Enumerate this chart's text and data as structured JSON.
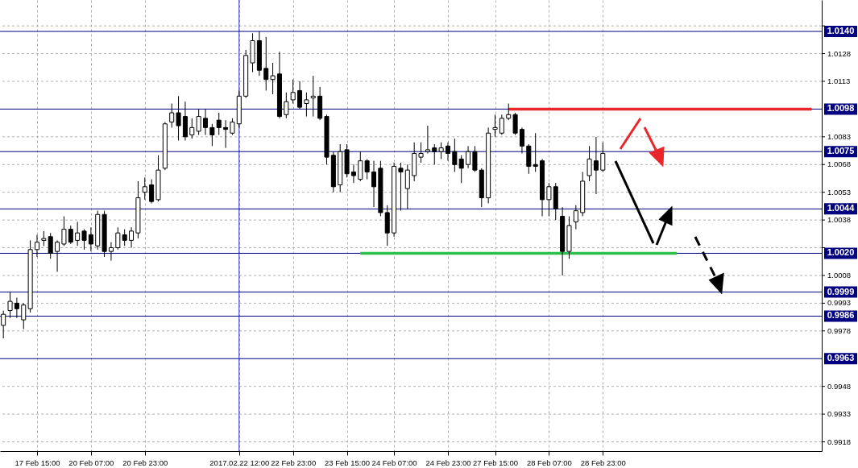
{
  "chart_data": {
    "type": "candlestick",
    "categories": [
      null,
      null,
      null,
      null,
      null,
      "17 Feb 15:00",
      null,
      null,
      null,
      null,
      null,
      null,
      null,
      "20 Feb 07:00",
      null,
      null,
      null,
      null,
      null,
      null,
      null,
      "20 Feb 23:00",
      null,
      null,
      null,
      null,
      null,
      null,
      null,
      null,
      null,
      null,
      null,
      null,
      null,
      "2017.02.22 12:00",
      null,
      null,
      null,
      null,
      null,
      null,
      null,
      "22 Feb 23:00",
      null,
      null,
      null,
      null,
      null,
      null,
      null,
      "23 Feb 15:00",
      null,
      null,
      null,
      null,
      null,
      null,
      "24 Feb 07:00",
      null,
      null,
      null,
      null,
      null,
      null,
      null,
      "24 Feb 23:00",
      null,
      null,
      null,
      null,
      null,
      null,
      "27 Feb 15:00",
      null,
      null,
      null,
      null,
      null,
      null,
      null,
      "28 Feb 07:00",
      null,
      null,
      null,
      null,
      null,
      null,
      null,
      "28 Feb 23:00",
      null,
      null,
      null,
      null,
      null,
      null,
      null,
      null,
      null,
      null,
      null,
      null,
      null,
      null,
      null,
      null,
      null,
      null,
      null,
      null,
      null,
      null,
      null,
      null,
      null,
      null,
      null,
      null,
      null,
      null,
      null,
      null
    ],
    "ohlc": [
      [
        0.9981,
        0.9989,
        0.9974,
        0.9987
      ],
      [
        0.9989,
        0.9999,
        0.9985,
        0.9994
      ],
      [
        0.9993,
        0.9996,
        0.9985,
        0.999
      ],
      [
        0.9984,
        0.9993,
        0.9979,
        0.9992
      ],
      [
        0.999,
        1.0027,
        0.9988,
        1.0022
      ],
      [
        1.0022,
        1.003,
        1.0018,
        1.0026
      ],
      [
        1.0027,
        1.0032,
        1.0024,
        1.0028
      ],
      [
        1.0029,
        1.0031,
        1.0017,
        1.002
      ],
      [
        1.0021,
        1.0027,
        1.001,
        1.0026
      ],
      [
        1.0025,
        1.004,
        1.0024,
        1.0033
      ],
      [
        1.0033,
        1.0035,
        1.0025,
        1.0026
      ],
      [
        1.0027,
        1.0037,
        1.0024,
        1.0031
      ],
      [
        1.0032,
        1.0033,
        1.0022,
        1.0027
      ],
      [
        1.003,
        1.0034,
        1.0021,
        1.0025
      ],
      [
        1.0024,
        1.0043,
        1.0022,
        1.0041
      ],
      [
        1.0041,
        1.0043,
        1.0018,
        1.0021
      ],
      [
        1.0021,
        1.0026,
        1.0016,
        1.0023
      ],
      [
        1.0023,
        1.0034,
        1.0022,
        1.0031
      ],
      [
        1.003,
        1.0033,
        1.0024,
        1.0027
      ],
      [
        1.0027,
        1.0034,
        1.0023,
        1.0032
      ],
      [
        1.0031,
        1.0059,
        1.0028,
        1.005
      ],
      [
        1.0053,
        1.0061,
        1.0049,
        1.0056
      ],
      [
        1.0057,
        1.006,
        1.0047,
        1.0048
      ],
      [
        1.0049,
        1.0073,
        1.0048,
        1.0065
      ],
      [
        1.0066,
        1.0091,
        1.0065,
        1.009
      ],
      [
        1.0091,
        1.0101,
        1.0088,
        1.0096
      ],
      [
        1.0096,
        1.0105,
        1.0081,
        1.0089
      ],
      [
        1.0094,
        1.0102,
        1.0081,
        1.0083
      ],
      [
        1.0084,
        1.0093,
        1.0082,
        1.0088
      ],
      [
        1.0086,
        1.0098,
        1.0084,
        1.0094
      ],
      [
        1.0093,
        1.0098,
        1.0084,
        1.0088
      ],
      [
        1.0088,
        1.009,
        1.0078,
        1.0084
      ],
      [
        1.0092,
        1.0096,
        1.0084,
        1.0088
      ],
      [
        1.0088,
        1.0092,
        1.0077,
        1.0087
      ],
      [
        1.0085,
        1.0093,
        1.0084,
        1.0091
      ],
      [
        1.009,
        1.0108,
        1.0088,
        1.0105
      ],
      [
        1.0105,
        1.013,
        1.0104,
        1.0127
      ],
      [
        1.0123,
        1.0139,
        1.0118,
        1.0135
      ],
      [
        1.0135,
        1.014,
        1.0116,
        1.0119
      ],
      [
        1.012,
        1.0137,
        1.0108,
        1.0114
      ],
      [
        1.0114,
        1.0123,
        1.0106,
        1.0116
      ],
      [
        1.0117,
        1.0129,
        1.0093,
        1.0094
      ],
      [
        1.0095,
        1.0107,
        1.0093,
        1.0102
      ],
      [
        1.0103,
        1.0114,
        1.0101,
        1.0107
      ],
      [
        1.0108,
        1.0113,
        1.0098,
        1.0099
      ],
      [
        1.0101,
        1.0107,
        1.0094,
        1.0103
      ],
      [
        1.0104,
        1.0116,
        1.0094,
        1.0105
      ],
      [
        1.0105,
        1.011,
        1.0092,
        1.0093
      ],
      [
        1.0094,
        1.0095,
        1.0068,
        1.0072
      ],
      [
        1.0073,
        1.0075,
        1.0053,
        1.0056
      ],
      [
        1.0057,
        1.0079,
        1.0053,
        1.0075
      ],
      [
        1.0076,
        1.0079,
        1.0061,
        1.0063
      ],
      [
        1.0064,
        1.0068,
        1.0058,
        1.0062
      ],
      [
        1.006,
        1.0075,
        1.0059,
        1.007
      ],
      [
        1.007,
        1.0071,
        1.006,
        1.0064
      ],
      [
        1.0064,
        1.007,
        1.0045,
        1.0056
      ],
      [
        1.0066,
        1.007,
        1.004,
        1.0042
      ],
      [
        1.0042,
        1.0046,
        1.0024,
        1.0031
      ],
      [
        1.0031,
        1.0069,
        1.0029,
        1.0067
      ],
      [
        1.0066,
        1.0069,
        1.0043,
        1.0064
      ],
      [
        1.0055,
        1.0068,
        1.0044,
        1.0065
      ],
      [
        1.0062,
        1.008,
        1.0059,
        1.0074
      ],
      [
        1.0072,
        1.008,
        1.0069,
        1.0074
      ],
      [
        1.0075,
        1.0089,
        1.0074,
        1.0076
      ],
      [
        1.0077,
        1.0079,
        1.0068,
        1.0075
      ],
      [
        1.0075,
        1.008,
        1.0071,
        1.0077
      ],
      [
        1.0078,
        1.008,
        1.007,
        1.0074
      ],
      [
        1.0075,
        1.0082,
        1.0064,
        1.0068
      ],
      [
        1.0071,
        1.0073,
        1.0058,
        1.0066
      ],
      [
        1.0068,
        1.0078,
        1.0066,
        1.0075
      ],
      [
        1.0075,
        1.0078,
        1.0064,
        1.0065
      ],
      [
        1.0065,
        1.0066,
        1.0045,
        1.005
      ],
      [
        1.005,
        1.0088,
        1.0047,
        1.0085
      ],
      [
        1.0087,
        1.0095,
        1.0083,
        1.0088
      ],
      [
        1.0085,
        1.0095,
        1.0084,
        1.0093
      ],
      [
        1.0093,
        1.0101,
        1.0092,
        1.0095
      ],
      [
        1.0095,
        1.0096,
        1.0084,
        1.0085
      ],
      [
        1.0087,
        1.0088,
        1.0074,
        1.0078
      ],
      [
        1.0078,
        1.0079,
        1.0063,
        1.0067
      ],
      [
        1.0068,
        1.0085,
        1.0064,
        1.0067
      ],
      [
        1.007,
        1.0071,
        1.004,
        1.0049
      ],
      [
        1.0049,
        1.0058,
        1.004,
        1.0056
      ],
      [
        1.0056,
        1.0058,
        1.0038,
        1.0044
      ],
      [
        1.004,
        1.0045,
        1.0008,
        1.0021
      ],
      [
        1.0021,
        1.004,
        1.0017,
        1.0035
      ],
      [
        1.0037,
        1.0046,
        1.0033,
        1.0043
      ],
      [
        1.0042,
        1.0064,
        1.004,
        1.0059
      ],
      [
        1.0062,
        1.0078,
        1.0059,
        1.0071
      ],
      [
        1.007,
        1.0083,
        1.0052,
        1.0065
      ],
      [
        1.0065,
        1.008,
        1.0064,
        1.0074
      ],
      null,
      null,
      null,
      null,
      null,
      null,
      null,
      null,
      null,
      null,
      null,
      null,
      null,
      null,
      null,
      null,
      null,
      null,
      null,
      null,
      null,
      null,
      null,
      null,
      null,
      null,
      null,
      null,
      null,
      null,
      null,
      null
    ],
    "series": [
      {
        "type": "line",
        "color": "#e8262b",
        "values": [
          null,
          null,
          null,
          null,
          null,
          null,
          null,
          null,
          null,
          null,
          null,
          null,
          null,
          null,
          null,
          null,
          null,
          null,
          null,
          null,
          null,
          null,
          null,
          null,
          null,
          null,
          null,
          null,
          null,
          null,
          null,
          null,
          null,
          null,
          null,
          null,
          null,
          null,
          null,
          null,
          null,
          null,
          null,
          null,
          null,
          null,
          null,
          null,
          null,
          null,
          null,
          null,
          null,
          null,
          null,
          null,
          null,
          null,
          null,
          null,
          null,
          null,
          null,
          null,
          null,
          null,
          null,
          null,
          null,
          null,
          null,
          null,
          null,
          null,
          null,
          1.0098,
          1.0098,
          1.0098,
          1.0098,
          1.0098,
          1.0098,
          1.0098,
          1.0098,
          1.0098,
          1.0098,
          1.0098,
          1.0098,
          1.0098,
          1.0098,
          1.0098,
          1.0098,
          1.0098,
          1.0098,
          1.0098,
          1.0098,
          1.0098,
          1.0098,
          1.0098,
          1.0098,
          1.0098,
          1.0098,
          1.0098,
          1.0098,
          1.0098,
          1.0098,
          1.0098,
          1.0098,
          1.0098,
          1.0098,
          1.0098,
          1.0098,
          1.0098,
          1.0098,
          1.0098,
          1.0098,
          1.0098,
          1.0098,
          1.0098,
          1.0098,
          1.0098,
          1.0098,
          null
        ]
      },
      {
        "type": "line",
        "color": "#2ebf4a",
        "values": [
          null,
          null,
          null,
          null,
          null,
          null,
          null,
          null,
          null,
          null,
          null,
          null,
          null,
          null,
          null,
          null,
          null,
          null,
          null,
          null,
          null,
          null,
          null,
          null,
          null,
          null,
          null,
          null,
          null,
          null,
          null,
          null,
          null,
          null,
          null,
          null,
          null,
          null,
          null,
          null,
          null,
          null,
          null,
          null,
          null,
          null,
          null,
          null,
          null,
          null,
          null,
          null,
          null,
          1.002,
          1.002,
          1.002,
          1.002,
          1.002,
          1.002,
          1.002,
          1.002,
          1.002,
          1.002,
          1.002,
          1.002,
          1.002,
          1.002,
          1.002,
          1.002,
          1.002,
          1.002,
          1.002,
          1.002,
          1.002,
          1.002,
          1.002,
          1.002,
          1.002,
          1.002,
          1.002,
          1.002,
          1.002,
          1.002,
          1.002,
          1.002,
          1.002,
          1.002,
          1.002,
          1.002,
          1.002,
          1.002,
          1.002,
          1.002,
          1.002,
          1.002,
          1.002,
          1.002,
          1.002,
          1.002,
          1.002,
          1.002,
          null,
          null,
          null,
          null,
          null,
          null,
          null,
          null,
          null,
          null,
          null,
          null,
          null,
          null,
          null,
          null,
          null,
          null,
          null,
          null,
          null
        ]
      }
    ],
    "ylim": [
      0.9913,
      1.0157
    ],
    "yticks": [
      {
        "value": 1.0143,
        "label": null
      },
      1.0128,
      1.0113,
      1.0083,
      1.0068,
      1.0053,
      1.0038,
      {
        "value": 1.0023,
        "label": null
      },
      1.0008,
      0.9993,
      0.9978,
      0.9948,
      0.9933,
      0.9918
    ],
    "ref_lines": [
      {
        "axis": "y",
        "value": 1.014,
        "label": "1.0140",
        "color": "#000080"
      },
      {
        "axis": "y",
        "value": 1.0098,
        "label": "1.0098",
        "color": "#000080"
      },
      {
        "axis": "y",
        "value": 1.0075,
        "label": "1.0075",
        "color": "#000080"
      },
      {
        "axis": "y",
        "value": 1.0044,
        "label": "1.0044",
        "color": "#000080"
      },
      {
        "axis": "y",
        "value": 1.002,
        "label": "1.0020",
        "color": "#000080"
      },
      {
        "axis": "y",
        "value": 0.9999,
        "label": "0.9999",
        "color": "#000080"
      },
      {
        "axis": "y",
        "value": 0.9986,
        "label": "0.9986",
        "color": "#000080"
      },
      {
        "axis": "y",
        "value": 0.9963,
        "label": "0.9963",
        "color": "#000080"
      },
      {
        "axis": "x",
        "value": "2017.02.22 12:00",
        "color": "#2a2ad0"
      }
    ],
    "grid": true
  }
}
